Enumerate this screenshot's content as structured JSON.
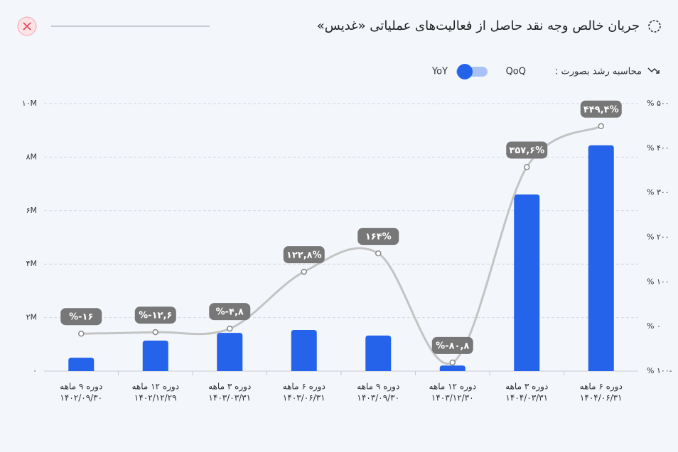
{
  "chart_data": {
    "type": "bar-line",
    "title": "جریان خالص وجه نقد حاصل از فعالیت‌های عملیاتی «غدیس»",
    "toggle_label": "محاسبه رشد بصورت :",
    "toggle_left": "QoQ",
    "toggle_right": "YoY",
    "categories": [
      [
        "دوره ۹ ماهه",
        "۱۴۰۲/۰۹/۳۰"
      ],
      [
        "دوره ۱۲ ماهه",
        "۱۴۰۲/۱۲/۲۹"
      ],
      [
        "دوره ۳ ماهه",
        "۱۴۰۳/۰۳/۳۱"
      ],
      [
        "دوره ۶ ماهه",
        "۱۴۰۳/۰۶/۳۱"
      ],
      [
        "دوره ۹ ماهه",
        "۱۴۰۳/۰۹/۳۰"
      ],
      [
        "دوره ۱۲ ماهه",
        "۱۴۰۳/۱۲/۳۰"
      ],
      [
        "دوره ۳ ماهه",
        "۱۴۰۴/۰۳/۳۱"
      ],
      [
        "دوره ۶ ماهه",
        "۱۴۰۴/۰۶/۳۱"
      ]
    ],
    "series": [
      {
        "kind": "bar",
        "color": "#2563eb",
        "values": [
          500000,
          1140000,
          1430000,
          1540000,
          1330000,
          210000,
          6600000,
          8440000
        ]
      },
      {
        "kind": "line",
        "axis": "y2",
        "color": "#c4c4c4",
        "values": [
          -16,
          -12.6,
          -4.8,
          122.8,
          164,
          -80.8,
          357.6,
          449.4
        ],
        "value_labels": [
          "%-۱۶",
          "%-۱۲,۶",
          "%-۴,۸",
          "۱۲۲,۸%",
          "۱۶۴%",
          "%-۸۰,۸",
          "۳۵۷,۶%",
          "۴۴۹,۴%"
        ]
      }
    ],
    "ylim": [
      0,
      10000000
    ],
    "yticks": [
      {
        "value": 0,
        "label": "۰"
      },
      {
        "value": 2000000,
        "label": "۲M"
      },
      {
        "value": 4000000,
        "label": "۴M"
      },
      {
        "value": 6000000,
        "label": "۶M"
      },
      {
        "value": 8000000,
        "label": "۸M"
      },
      {
        "value": 10000000,
        "label": "۱۰M"
      }
    ],
    "y2lim": [
      -100,
      500
    ],
    "y2ticks": [
      {
        "value": -100,
        "label": "% ۱۰۰-"
      },
      {
        "value": 0,
        "label": "% ۰"
      },
      {
        "value": 100,
        "label": "% ۱۰۰"
      },
      {
        "value": 200,
        "label": "% ۲۰۰"
      },
      {
        "value": 300,
        "label": "% ۳۰۰"
      },
      {
        "value": 400,
        "label": "% ۴۰۰"
      },
      {
        "value": 500,
        "label": "% ۵۰۰"
      }
    ],
    "grid": true
  }
}
